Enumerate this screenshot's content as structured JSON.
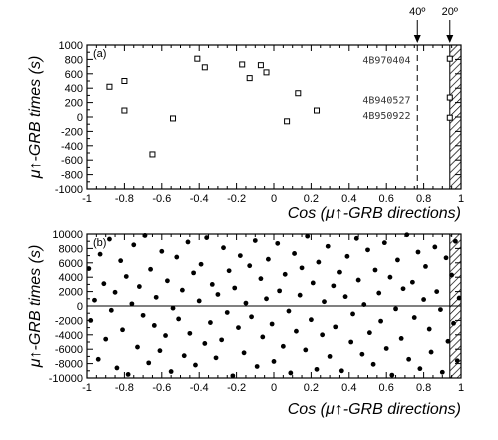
{
  "chart_data": [
    {
      "panel": "(a)",
      "type": "scatter",
      "marker": "open-square",
      "xlabel": "Cos (μ↑-GRB directions)",
      "ylabel": "μ↑-GRB times (s)",
      "xlim": [
        -1,
        1
      ],
      "ylim": [
        -1000,
        1000
      ],
      "xticks": [
        "-1",
        "-0.8",
        "-0.6",
        "-0.4",
        "-0.2",
        "0",
        "0.2",
        "0.4",
        "0.6",
        "0.8",
        "1"
      ],
      "yticks": [
        "-1000",
        "-800",
        "-600",
        "-400",
        "-200",
        "0",
        "200",
        "400",
        "600",
        "800",
        "1000"
      ],
      "points": [
        {
          "x": -0.88,
          "y": 420
        },
        {
          "x": -0.8,
          "y": 500
        },
        {
          "x": -0.8,
          "y": 90
        },
        {
          "x": -0.65,
          "y": -520
        },
        {
          "x": -0.54,
          "y": -20
        },
        {
          "x": -0.41,
          "y": 810
        },
        {
          "x": -0.37,
          "y": 690
        },
        {
          "x": -0.17,
          "y": 730
        },
        {
          "x": -0.13,
          "y": 540
        },
        {
          "x": -0.07,
          "y": 720
        },
        {
          "x": -0.04,
          "y": 620
        },
        {
          "x": 0.07,
          "y": -60
        },
        {
          "x": 0.13,
          "y": 330
        },
        {
          "x": 0.23,
          "y": 90
        },
        {
          "x": 0.94,
          "y": 810
        },
        {
          "x": 0.94,
          "y": 270
        },
        {
          "x": 0.94,
          "y": -10
        }
      ],
      "annotations": [
        {
          "text": "4B970404",
          "x": 0.73,
          "y": 800
        },
        {
          "text": "4B940527",
          "x": 0.73,
          "y": 240
        },
        {
          "text": "4B950922",
          "x": 0.73,
          "y": 30
        }
      ],
      "cut_lines": [
        {
          "label": "40º",
          "x": 0.766,
          "style": "dashed"
        },
        {
          "label": "20º",
          "x": 0.94,
          "style": "hatched"
        }
      ]
    },
    {
      "panel": "(b)",
      "type": "scatter",
      "marker": "filled-circle",
      "xlabel": "Cos (μ↑-GRB directions)",
      "ylabel": "μ↑-GRB times (s)",
      "xlim": [
        -1,
        1
      ],
      "ylim": [
        -10000,
        10000
      ],
      "xticks": [
        "-1",
        "-0.8",
        "-0.6",
        "-0.4",
        "-0.2",
        "0",
        "0.2",
        "0.4",
        "0.6",
        "0.8",
        "1"
      ],
      "yticks": [
        "-10000",
        "-8000",
        "-6000",
        "-4000",
        "-2000",
        "0",
        "2000",
        "4000",
        "6000",
        "8000",
        "10000"
      ],
      "points": [
        {
          "x": -0.99,
          "y": 5200
        },
        {
          "x": -0.98,
          "y": -2000
        },
        {
          "x": -0.96,
          "y": 800
        },
        {
          "x": -0.94,
          "y": -7400
        },
        {
          "x": -0.93,
          "y": 7200
        },
        {
          "x": -0.91,
          "y": 3100
        },
        {
          "x": -0.9,
          "y": -4600
        },
        {
          "x": -0.88,
          "y": 9300
        },
        {
          "x": -0.87,
          "y": -600
        },
        {
          "x": -0.85,
          "y": 1900
        },
        {
          "x": -0.84,
          "y": -8600
        },
        {
          "x": -0.82,
          "y": 6300
        },
        {
          "x": -0.81,
          "y": -3300
        },
        {
          "x": -0.79,
          "y": 4100
        },
        {
          "x": -0.78,
          "y": -9500
        },
        {
          "x": -0.76,
          "y": 300
        },
        {
          "x": -0.75,
          "y": 8500
        },
        {
          "x": -0.73,
          "y": -5700
        },
        {
          "x": -0.72,
          "y": 2700
        },
        {
          "x": -0.7,
          "y": -1300
        },
        {
          "x": -0.69,
          "y": 9800
        },
        {
          "x": -0.67,
          "y": -7900
        },
        {
          "x": -0.66,
          "y": 5100
        },
        {
          "x": -0.64,
          "y": -2700
        },
        {
          "x": -0.63,
          "y": 1200
        },
        {
          "x": -0.61,
          "y": -6200
        },
        {
          "x": -0.6,
          "y": 7600
        },
        {
          "x": -0.58,
          "y": -4100
        },
        {
          "x": -0.57,
          "y": 3500
        },
        {
          "x": -0.55,
          "y": -9100
        },
        {
          "x": -0.54,
          "y": -300
        },
        {
          "x": -0.52,
          "y": 6800
        },
        {
          "x": -0.51,
          "y": -1800
        },
        {
          "x": -0.49,
          "y": 2200
        },
        {
          "x": -0.48,
          "y": -6900
        },
        {
          "x": -0.46,
          "y": 8900
        },
        {
          "x": -0.45,
          "y": -3800
        },
        {
          "x": -0.43,
          "y": 4600
        },
        {
          "x": -0.42,
          "y": -8200
        },
        {
          "x": -0.4,
          "y": 700
        },
        {
          "x": -0.39,
          "y": 5800
        },
        {
          "x": -0.37,
          "y": -5200
        },
        {
          "x": -0.36,
          "y": 9500
        },
        {
          "x": -0.34,
          "y": -2300
        },
        {
          "x": -0.33,
          "y": 3000
        },
        {
          "x": -0.31,
          "y": -7200
        },
        {
          "x": -0.3,
          "y": 1600
        },
        {
          "x": -0.28,
          "y": -4700
        },
        {
          "x": -0.27,
          "y": 8100
        },
        {
          "x": -0.25,
          "y": -900
        },
        {
          "x": -0.24,
          "y": 4900
        },
        {
          "x": -0.22,
          "y": -9700
        },
        {
          "x": -0.21,
          "y": 2500
        },
        {
          "x": -0.19,
          "y": -3000
        },
        {
          "x": -0.18,
          "y": 7000
        },
        {
          "x": -0.16,
          "y": -6500
        },
        {
          "x": -0.15,
          "y": 400
        },
        {
          "x": -0.13,
          "y": 5600
        },
        {
          "x": -0.12,
          "y": -1500
        },
        {
          "x": -0.1,
          "y": 9100
        },
        {
          "x": -0.09,
          "y": -8400
        },
        {
          "x": -0.07,
          "y": 3800
        },
        {
          "x": -0.06,
          "y": -4300
        },
        {
          "x": -0.04,
          "y": 1000
        },
        {
          "x": -0.03,
          "y": 6500
        },
        {
          "x": -0.01,
          "y": -2500
        },
        {
          "x": 0.0,
          "y": -7700
        },
        {
          "x": 0.02,
          "y": 8700
        },
        {
          "x": 0.03,
          "y": 2100
        },
        {
          "x": 0.05,
          "y": -5600
        },
        {
          "x": 0.06,
          "y": 4400
        },
        {
          "x": 0.08,
          "y": -700
        },
        {
          "x": 0.09,
          "y": -9300
        },
        {
          "x": 0.11,
          "y": 7300
        },
        {
          "x": 0.12,
          "y": -3500
        },
        {
          "x": 0.14,
          "y": 1500
        },
        {
          "x": 0.15,
          "y": 5300
        },
        {
          "x": 0.17,
          "y": -6100
        },
        {
          "x": 0.18,
          "y": 9700
        },
        {
          "x": 0.2,
          "y": -1900
        },
        {
          "x": 0.21,
          "y": 3200
        },
        {
          "x": 0.23,
          "y": -8800
        },
        {
          "x": 0.24,
          "y": 6100
        },
        {
          "x": 0.26,
          "y": -4000
        },
        {
          "x": 0.27,
          "y": 600
        },
        {
          "x": 0.29,
          "y": 8300
        },
        {
          "x": 0.3,
          "y": -7000
        },
        {
          "x": 0.32,
          "y": 2800
        },
        {
          "x": 0.33,
          "y": -2900
        },
        {
          "x": 0.35,
          "y": 4700
        },
        {
          "x": 0.36,
          "y": -9000
        },
        {
          "x": 0.38,
          "y": 1300
        },
        {
          "x": 0.39,
          "y": 6900
        },
        {
          "x": 0.41,
          "y": -5000
        },
        {
          "x": 0.42,
          "y": -1100
        },
        {
          "x": 0.44,
          "y": 9400
        },
        {
          "x": 0.45,
          "y": 3600
        },
        {
          "x": 0.47,
          "y": -6700
        },
        {
          "x": 0.48,
          "y": 200
        },
        {
          "x": 0.5,
          "y": 7800
        },
        {
          "x": 0.51,
          "y": -3700
        },
        {
          "x": 0.53,
          "y": -8100
        },
        {
          "x": 0.54,
          "y": 5000
        },
        {
          "x": 0.56,
          "y": 1800
        },
        {
          "x": 0.57,
          "y": -2100
        },
        {
          "x": 0.59,
          "y": 8800
        },
        {
          "x": 0.6,
          "y": -5900
        },
        {
          "x": 0.62,
          "y": 4000
        },
        {
          "x": 0.63,
          "y": -9600
        },
        {
          "x": 0.65,
          "y": -400
        },
        {
          "x": 0.66,
          "y": 6400
        },
        {
          "x": 0.68,
          "y": -4500
        },
        {
          "x": 0.69,
          "y": 2400
        },
        {
          "x": 0.71,
          "y": 9900
        },
        {
          "x": 0.72,
          "y": -7400
        },
        {
          "x": 0.74,
          "y": 3300
        },
        {
          "x": 0.75,
          "y": -1600
        },
        {
          "x": 0.77,
          "y": 7500
        },
        {
          "x": 0.78,
          "y": -8700
        },
        {
          "x": 0.8,
          "y": 900
        },
        {
          "x": 0.81,
          "y": 5500
        },
        {
          "x": 0.83,
          "y": -3200
        },
        {
          "x": 0.84,
          "y": -6400
        },
        {
          "x": 0.86,
          "y": 8200
        },
        {
          "x": 0.87,
          "y": 2000
        },
        {
          "x": 0.89,
          "y": -500
        },
        {
          "x": 0.9,
          "y": -9200
        },
        {
          "x": 0.92,
          "y": 6700
        },
        {
          "x": 0.93,
          "y": -4900
        },
        {
          "x": 0.95,
          "y": 4300
        },
        {
          "x": 0.96,
          "y": -2400
        },
        {
          "x": 0.97,
          "y": 9000
        },
        {
          "x": 0.98,
          "y": -7600
        },
        {
          "x": 0.99,
          "y": 1100
        }
      ],
      "cut_lines": [
        {
          "label": "",
          "x": 0.94,
          "style": "hatched"
        }
      ]
    }
  ]
}
